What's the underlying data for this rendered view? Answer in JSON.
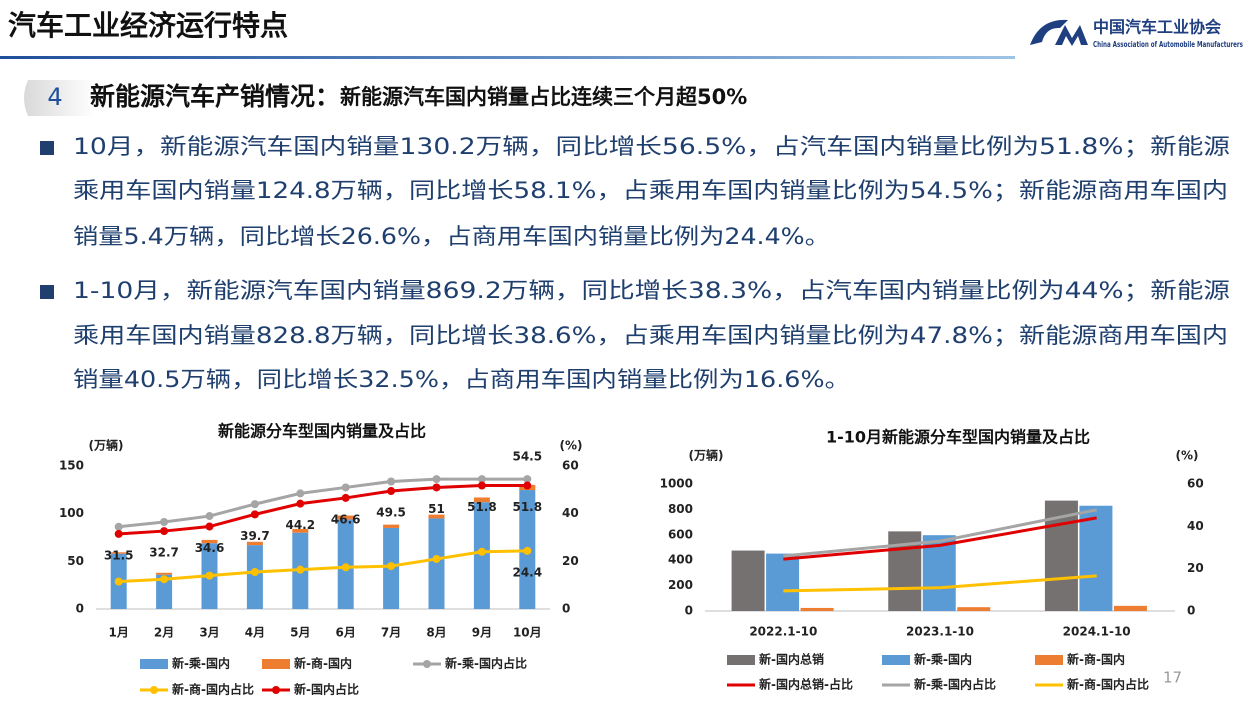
{
  "header": {
    "title": "汽车工业经济运行特点",
    "org_name": "中国汽车工业协会",
    "org_name_en": "China Association of Automobile Manufacturers"
  },
  "section": {
    "number": "4",
    "label": "新能源汽车产销情况：",
    "text": "新能源汽车国内销量占比连续三个月超50%"
  },
  "bullets": [
    {
      "lines": [
        "10月，新能源汽车国内销量130.2万辆，同比增长56.5%，占汽车国内销量比例为51.8%；新能源",
        "乘用车国内销量124.8万辆，同比增长58.1%，占乘用车国内销量比例为54.5%；新能源商用车国内",
        "销量5.4万辆，同比增长26.6%，占商用车国内销量比例为24.4%。"
      ]
    },
    {
      "lines": [
        "1-10月，新能源汽车国内销量869.2万辆，同比增长38.3%，占汽车国内销量比例为44%；新能源",
        "乘用车国内销量828.8万辆，同比增长38.6%，占乘用车国内销量比例为47.8%；新能源商用车国内",
        "销量40.5万辆，同比增长32.5%，占商用车国内销量比例为16.6%。"
      ]
    }
  ],
  "page_number": "17",
  "chart_data": [
    {
      "type": "bar",
      "title": "新能源分车型国内销量及占比",
      "y_label": "(万辆)",
      "y2_label": "(%)",
      "stacked": true,
      "markers": true,
      "grid": false,
      "categories": [
        "1月",
        "2月",
        "3月",
        "4月",
        "5月",
        "6月",
        "7月",
        "8月",
        "9月",
        "10月"
      ],
      "ylim": [
        0,
        150
      ],
      "yticks": [
        0,
        50,
        100,
        150
      ],
      "y2lim": [
        0,
        60
      ],
      "y2ticks": [
        0,
        20,
        40,
        60
      ],
      "series": [
        {
          "name": "新-乘-国内",
          "color": "#5b9bd5",
          "values": [
            58,
            36,
            69,
            67,
            80,
            94,
            85,
            95,
            112,
            124.8
          ]
        },
        {
          "name": "新-商-国内",
          "color": "#ed7d31",
          "values": [
            1.5,
            2,
            3.5,
            3.5,
            4,
            4,
            3.5,
            4,
            5,
            5.4
          ]
        },
        {
          "name": "新-乘-国内占比",
          "color": "#a5a5a5",
          "type": "line",
          "axis": "y2",
          "label_position": "above",
          "values": [
            34.5,
            36.5,
            39,
            44,
            48.5,
            51,
            53.5,
            54.5,
            54.5,
            54.5
          ],
          "value_labels": [
            null,
            null,
            null,
            null,
            null,
            null,
            null,
            null,
            null,
            "54.5"
          ]
        },
        {
          "name": "新-商-国内占比",
          "color": "#ffc000",
          "type": "line",
          "axis": "y2",
          "label_position": "below",
          "values": [
            11.5,
            12.5,
            14,
            15.5,
            16.5,
            17.5,
            18,
            21,
            24,
            24.4
          ],
          "value_labels": [
            null,
            null,
            null,
            null,
            null,
            null,
            null,
            null,
            null,
            "24.4"
          ]
        },
        {
          "name": "新-国内占比",
          "color": "#e00000",
          "type": "line",
          "axis": "y2",
          "label_position": "below",
          "values": [
            31.5,
            32.7,
            34.6,
            39.7,
            44.2,
            46.6,
            49.5,
            51,
            51.8,
            51.8
          ],
          "value_labels": [
            "31.5",
            "32.7",
            "34.6",
            "39.7",
            "44.2",
            "46.6",
            "49.5",
            "51",
            "51.8",
            "51.8"
          ]
        }
      ]
    },
    {
      "type": "bar",
      "title": "1-10月新能源分车型国内销量及占比",
      "y_label": "(万辆)",
      "y2_label": "(%)",
      "stacked": false,
      "markers": false,
      "grid": false,
      "categories": [
        "2022.1-10",
        "2023.1-10",
        "2024.1-10"
      ],
      "ylim": [
        0,
        1000
      ],
      "yticks": [
        0,
        200,
        400,
        600,
        800,
        1000
      ],
      "y2lim": [
        0,
        60
      ],
      "y2ticks": [
        0,
        20,
        40,
        60
      ],
      "series": [
        {
          "name": "新-国内总销",
          "color": "#767171",
          "values": [
            476,
            627,
            869.2
          ]
        },
        {
          "name": "新-乘-国内",
          "color": "#5b9bd5",
          "values": [
            452,
            597,
            828.8
          ]
        },
        {
          "name": "新-商-国内",
          "color": "#ed7d31",
          "values": [
            24,
            30,
            40.5
          ]
        },
        {
          "name": "新-国内总销-占比",
          "color": "#e00000",
          "type": "line",
          "axis": "y2",
          "values": [
            24.5,
            31,
            44
          ]
        },
        {
          "name": "新-乘-国内占比",
          "color": "#a5a5a5",
          "type": "line",
          "axis": "y2",
          "values": [
            26,
            33,
            47.8
          ]
        },
        {
          "name": "新-商-国内占比",
          "color": "#ffc000",
          "type": "line",
          "axis": "y2",
          "values": [
            9.5,
            11,
            16.6
          ]
        }
      ]
    }
  ]
}
